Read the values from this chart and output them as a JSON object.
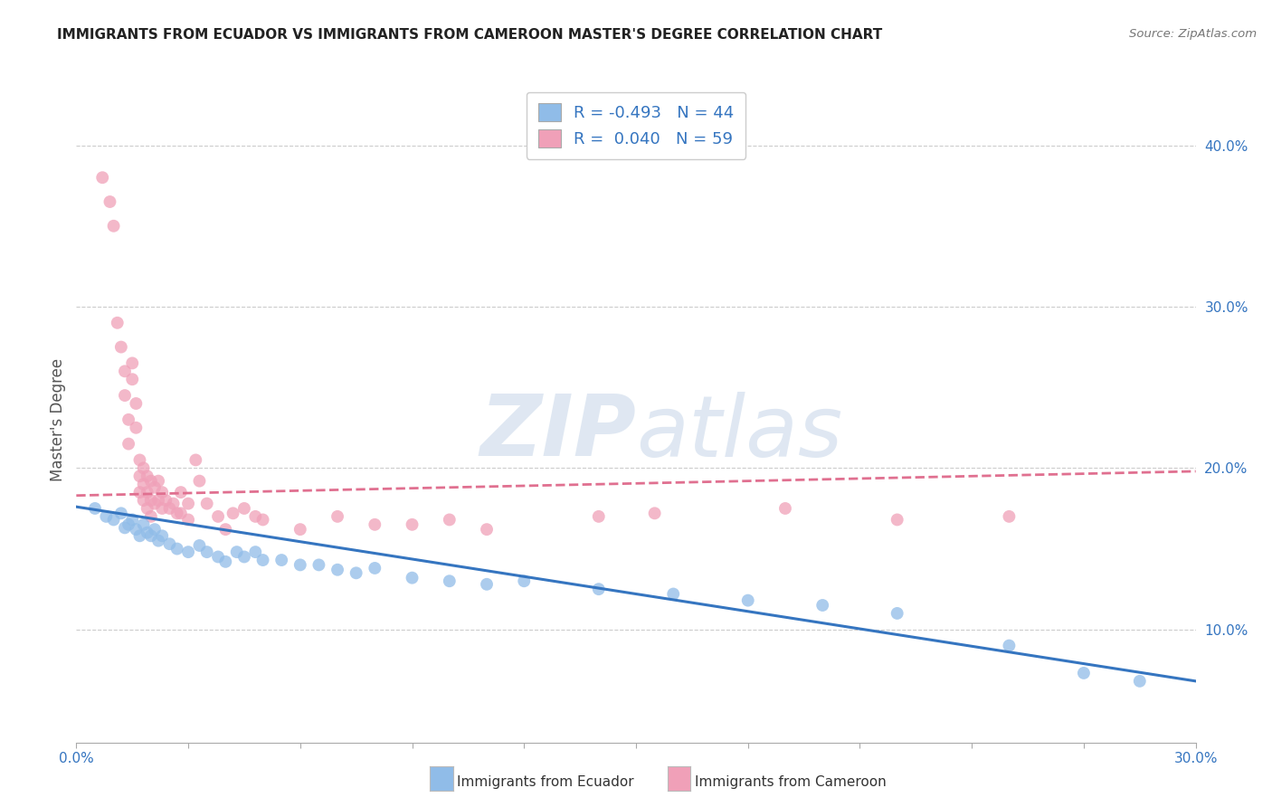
{
  "title": "IMMIGRANTS FROM ECUADOR VS IMMIGRANTS FROM CAMEROON MASTER'S DEGREE CORRELATION CHART",
  "source": "Source: ZipAtlas.com",
  "ylabel": "Master's Degree",
  "ylabel_right_ticks": [
    "40.0%",
    "30.0%",
    "20.0%",
    "10.0%"
  ],
  "ylabel_right_vals": [
    0.4,
    0.3,
    0.2,
    0.1
  ],
  "xlim": [
    0.0,
    0.3
  ],
  "ylim": [
    0.03,
    0.43
  ],
  "legend": {
    "ecuador": {
      "R": -0.493,
      "N": 44
    },
    "cameroon": {
      "R": 0.04,
      "N": 59
    }
  },
  "ecuador_scatter": [
    [
      0.005,
      0.175
    ],
    [
      0.008,
      0.17
    ],
    [
      0.01,
      0.168
    ],
    [
      0.012,
      0.172
    ],
    [
      0.013,
      0.163
    ],
    [
      0.014,
      0.165
    ],
    [
      0.015,
      0.168
    ],
    [
      0.016,
      0.162
    ],
    [
      0.017,
      0.158
    ],
    [
      0.018,
      0.165
    ],
    [
      0.019,
      0.16
    ],
    [
      0.02,
      0.158
    ],
    [
      0.021,
      0.162
    ],
    [
      0.022,
      0.155
    ],
    [
      0.023,
      0.158
    ],
    [
      0.025,
      0.153
    ],
    [
      0.027,
      0.15
    ],
    [
      0.03,
      0.148
    ],
    [
      0.033,
      0.152
    ],
    [
      0.035,
      0.148
    ],
    [
      0.038,
      0.145
    ],
    [
      0.04,
      0.142
    ],
    [
      0.043,
      0.148
    ],
    [
      0.045,
      0.145
    ],
    [
      0.048,
      0.148
    ],
    [
      0.05,
      0.143
    ],
    [
      0.055,
      0.143
    ],
    [
      0.06,
      0.14
    ],
    [
      0.065,
      0.14
    ],
    [
      0.07,
      0.137
    ],
    [
      0.075,
      0.135
    ],
    [
      0.08,
      0.138
    ],
    [
      0.09,
      0.132
    ],
    [
      0.1,
      0.13
    ],
    [
      0.11,
      0.128
    ],
    [
      0.12,
      0.13
    ],
    [
      0.14,
      0.125
    ],
    [
      0.16,
      0.122
    ],
    [
      0.18,
      0.118
    ],
    [
      0.2,
      0.115
    ],
    [
      0.22,
      0.11
    ],
    [
      0.25,
      0.09
    ],
    [
      0.27,
      0.073
    ],
    [
      0.285,
      0.068
    ]
  ],
  "cameroon_scatter": [
    [
      0.007,
      0.38
    ],
    [
      0.009,
      0.365
    ],
    [
      0.01,
      0.35
    ],
    [
      0.011,
      0.29
    ],
    [
      0.012,
      0.275
    ],
    [
      0.013,
      0.26
    ],
    [
      0.013,
      0.245
    ],
    [
      0.014,
      0.23
    ],
    [
      0.014,
      0.215
    ],
    [
      0.015,
      0.265
    ],
    [
      0.015,
      0.255
    ],
    [
      0.016,
      0.24
    ],
    [
      0.016,
      0.225
    ],
    [
      0.017,
      0.205
    ],
    [
      0.017,
      0.195
    ],
    [
      0.017,
      0.185
    ],
    [
      0.018,
      0.2
    ],
    [
      0.018,
      0.19
    ],
    [
      0.018,
      0.18
    ],
    [
      0.019,
      0.195
    ],
    [
      0.019,
      0.185
    ],
    [
      0.019,
      0.175
    ],
    [
      0.02,
      0.192
    ],
    [
      0.02,
      0.18
    ],
    [
      0.02,
      0.17
    ],
    [
      0.021,
      0.188
    ],
    [
      0.021,
      0.178
    ],
    [
      0.022,
      0.192
    ],
    [
      0.022,
      0.18
    ],
    [
      0.023,
      0.185
    ],
    [
      0.023,
      0.175
    ],
    [
      0.024,
      0.18
    ],
    [
      0.025,
      0.175
    ],
    [
      0.026,
      0.178
    ],
    [
      0.027,
      0.172
    ],
    [
      0.028,
      0.185
    ],
    [
      0.028,
      0.172
    ],
    [
      0.03,
      0.178
    ],
    [
      0.03,
      0.168
    ],
    [
      0.032,
      0.205
    ],
    [
      0.033,
      0.192
    ],
    [
      0.035,
      0.178
    ],
    [
      0.038,
      0.17
    ],
    [
      0.04,
      0.162
    ],
    [
      0.042,
      0.172
    ],
    [
      0.045,
      0.175
    ],
    [
      0.048,
      0.17
    ],
    [
      0.05,
      0.168
    ],
    [
      0.06,
      0.162
    ],
    [
      0.07,
      0.17
    ],
    [
      0.08,
      0.165
    ],
    [
      0.09,
      0.165
    ],
    [
      0.1,
      0.168
    ],
    [
      0.11,
      0.162
    ],
    [
      0.14,
      0.17
    ],
    [
      0.155,
      0.172
    ],
    [
      0.19,
      0.175
    ],
    [
      0.22,
      0.168
    ],
    [
      0.25,
      0.17
    ]
  ],
  "ecuador_line_x": [
    0.0,
    0.3
  ],
  "ecuador_line_y": [
    0.176,
    0.068
  ],
  "cameroon_line_x": [
    0.0,
    0.3
  ],
  "cameroon_line_y": [
    0.183,
    0.198
  ],
  "ecuador_line_color": "#3575c0",
  "cameroon_line_color": "#e07090",
  "cameroon_line_style": "--",
  "scatter_ecuador_color": "#90bce8",
  "scatter_cameroon_color": "#f0a0b8",
  "watermark": "ZIPatlas",
  "background_color": "#ffffff",
  "grid_color": "#cccccc",
  "title_color": "#222222",
  "source_color": "#777777",
  "axis_label_color": "#3575c0",
  "ylabel_color": "#555555"
}
